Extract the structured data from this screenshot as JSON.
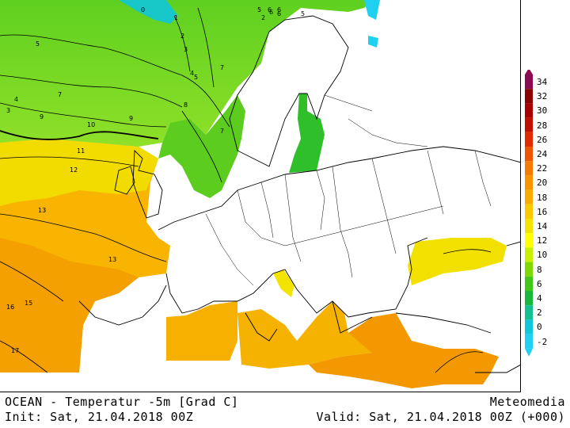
{
  "footer": {
    "title": "OCEAN - Temperatur -5m [Grad C]",
    "source": "Meteomedia",
    "init": "Init: Sat, 21.04.2018 00Z",
    "valid": "Valid: Sat, 21.04.2018 00Z (+000)"
  },
  "legend": {
    "levels": [
      "34",
      "32",
      "30",
      "28",
      "26",
      "24",
      "22",
      "20",
      "18",
      "16",
      "14",
      "12",
      "10",
      "8",
      "6",
      "4",
      "2",
      "0",
      "-2"
    ],
    "colors": [
      "#8b0a50",
      "#8b0000",
      "#a80000",
      "#c21000",
      "#e02a00",
      "#ee5500",
      "#f47a00",
      "#f79400",
      "#f8ac00",
      "#fbc900",
      "#f3e300",
      "#ffff00",
      "#c8f000",
      "#7fd800",
      "#3fc818",
      "#17b83c",
      "#12c090",
      "#10c8dc",
      "#20d0f0"
    ]
  },
  "contour_labels": [
    {
      "text": "0"
    },
    {
      "text": "1"
    },
    {
      "text": "2"
    },
    {
      "text": "3"
    },
    {
      "text": "4"
    },
    {
      "text": "5"
    },
    {
      "text": "5"
    },
    {
      "text": "6"
    },
    {
      "text": "6"
    },
    {
      "text": "5"
    },
    {
      "text": "6"
    },
    {
      "text": "7"
    },
    {
      "text": "7"
    },
    {
      "text": "8"
    },
    {
      "text": "9"
    },
    {
      "text": "9"
    },
    {
      "text": "10"
    },
    {
      "text": "11"
    },
    {
      "text": "12"
    },
    {
      "text": "13"
    },
    {
      "text": "13"
    },
    {
      "text": "15"
    },
    {
      "text": "16"
    },
    {
      "text": "17"
    },
    {
      "text": "7"
    },
    {
      "text": "6"
    },
    {
      "text": "5"
    },
    {
      "text": "4"
    },
    {
      "text": "3"
    },
    {
      "text": "2"
    }
  ]
}
